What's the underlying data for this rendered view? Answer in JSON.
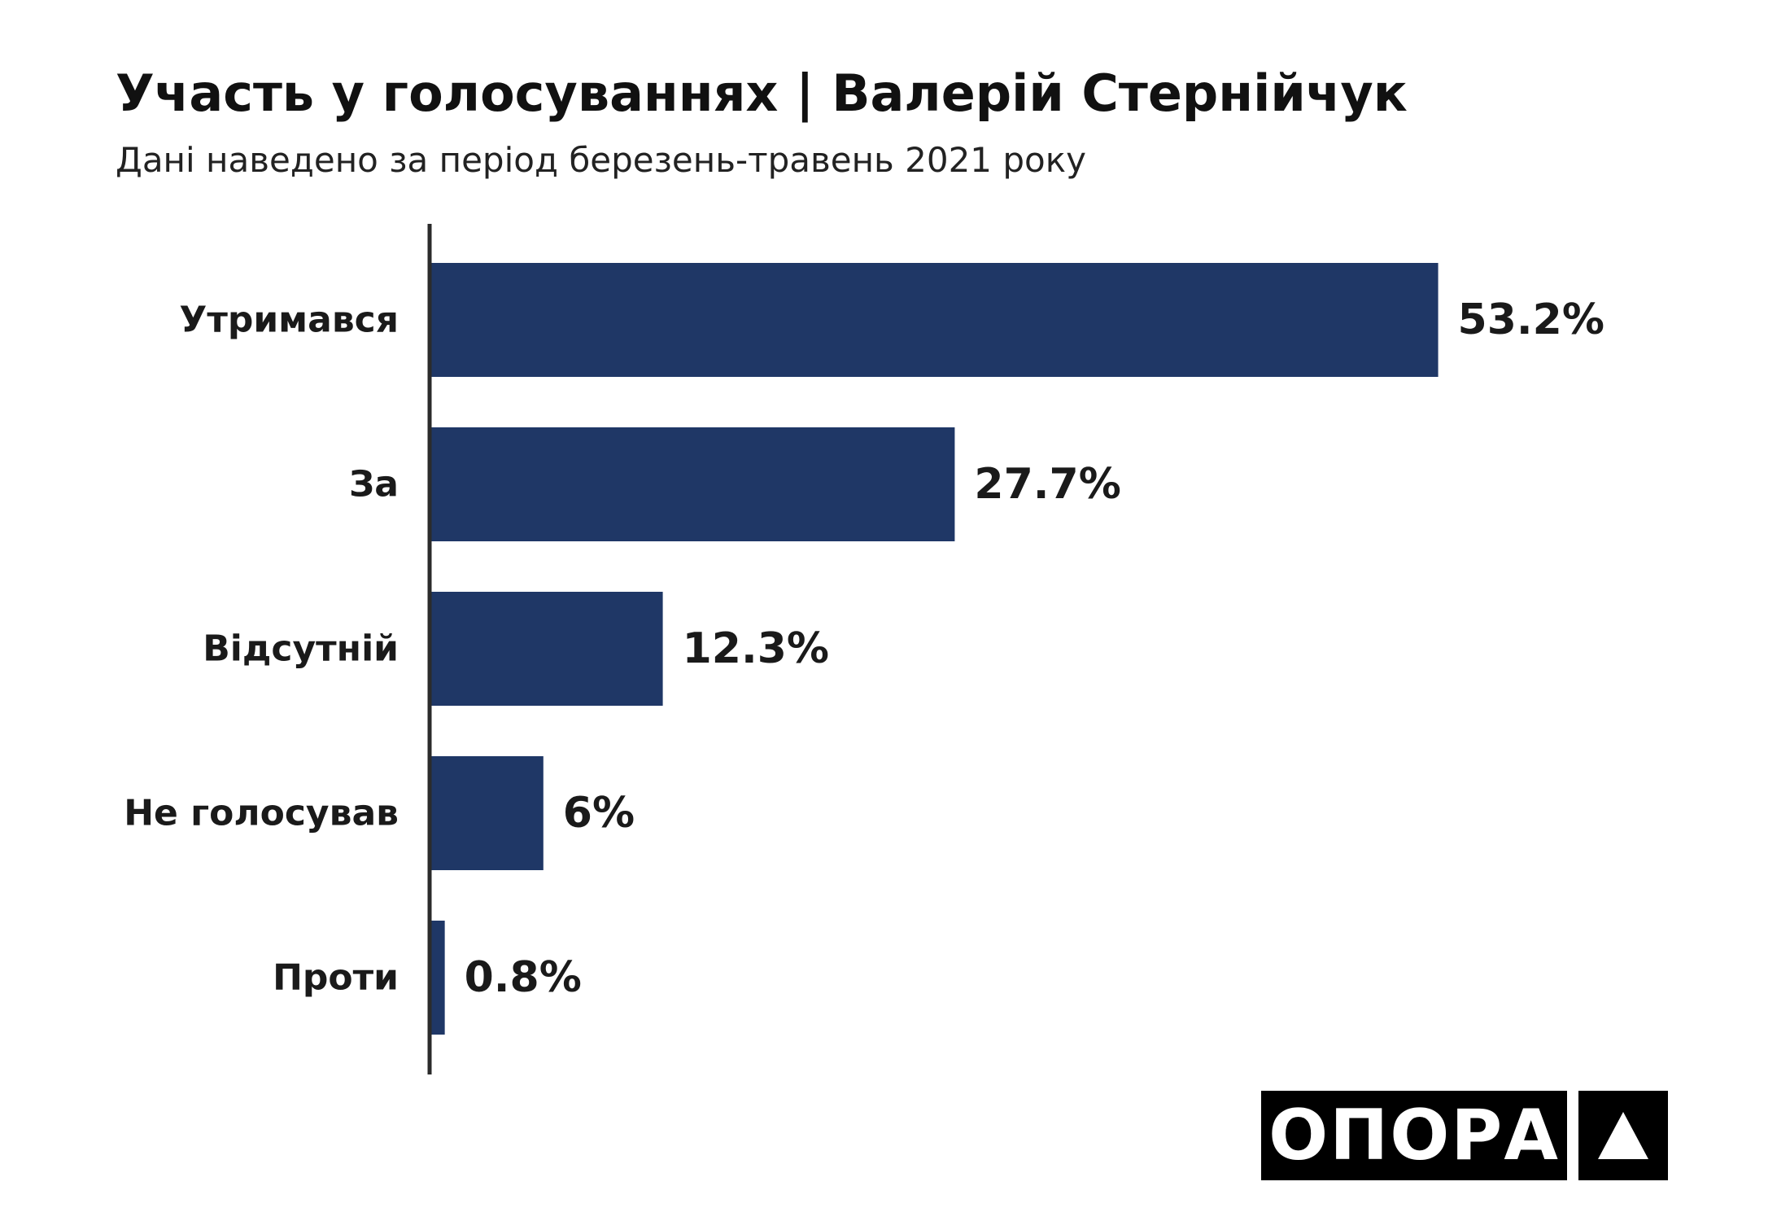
{
  "chart_data": {
    "type": "bar",
    "orientation": "horizontal",
    "title": "Участь у голосуваннях | Валерій Стернійчук",
    "subtitle": "Дані наведено за період березень-травень 2021 року",
    "categories": [
      "Утримався",
      "За",
      "Відсутній",
      "Не голосував",
      "Проти"
    ],
    "values": [
      53.2,
      27.7,
      12.3,
      6,
      0.8
    ],
    "value_labels": [
      "53.2%",
      "27.7%",
      "12.3%",
      "6%",
      "0.8%"
    ],
    "xlim": [
      0,
      60
    ],
    "grid": false,
    "legend": "none",
    "bar_color": "#1f3766"
  },
  "logo": {
    "text": "ОПОРА",
    "mark": "triangle-icon"
  }
}
